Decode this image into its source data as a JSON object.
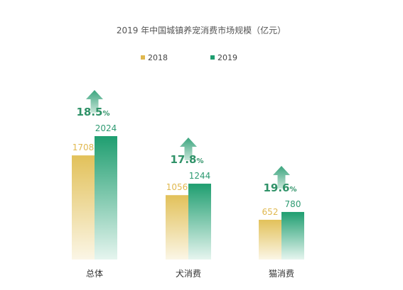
{
  "chart_data": {
    "type": "bar",
    "title": "2019 年中国城镇养宠消费市场规模（亿元）",
    "categories": [
      "总体",
      "犬消费",
      "猫消费"
    ],
    "series": [
      {
        "name": "2018",
        "values": [
          1708,
          1056,
          652
        ]
      },
      {
        "name": "2019",
        "values": [
          2024,
          1244,
          780
        ]
      }
    ],
    "growth_labels": [
      {
        "value": "18.5",
        "unit": "%"
      },
      {
        "value": "17.8",
        "unit": "%"
      },
      {
        "value": "19.6",
        "unit": "%"
      }
    ],
    "ylim": [
      0,
      2200
    ],
    "grid": false,
    "legend_position": "top-center",
    "colors": {
      "s2018_top": "#e2c15a",
      "s2018_bottom": "#fbf6e6",
      "s2019_top": "#1f9e70",
      "s2019_bottom": "#e6f5ef",
      "label_2018": "#e0b84f",
      "label_2019": "#2e9a72",
      "growth_text": "#2f9268",
      "arrow_top": "#3aa57e",
      "arrow_bottom": "#c9e6d9",
      "title_text": "#555555",
      "category_text": "#333333"
    }
  }
}
